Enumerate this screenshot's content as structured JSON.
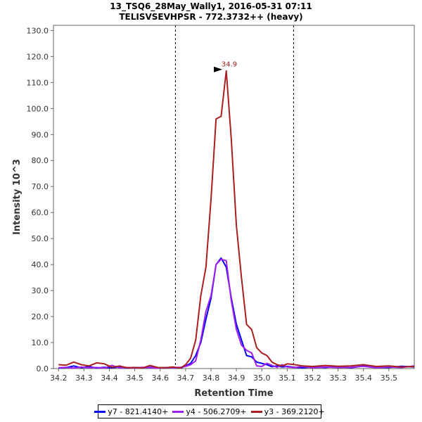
{
  "header": {
    "title_line1": "13_TSQ6_28May_Wally1, 2016-05-31 07:11",
    "title_line2": "TELISVSEVHPSR - 772.3732++ (heavy)"
  },
  "chart_data": {
    "type": "line",
    "xlabel": "Retention Time",
    "ylabel": "Intensity 10^3",
    "xlim": [
      34.18,
      35.6
    ],
    "ylim": [
      0,
      132
    ],
    "x_ticks": [
      "34.2",
      "34.3",
      "34.4",
      "34.5",
      "34.6",
      "34.7",
      "34.8",
      "34.9",
      "35.0",
      "35.1",
      "35.2",
      "35.3",
      "35.4",
      "35.5"
    ],
    "y_ticks": [
      "0.0",
      "10.0",
      "20.0",
      "30.0",
      "40.0",
      "50.0",
      "60.0",
      "70.0",
      "80.0",
      "90.0",
      "100.0",
      "110.0",
      "120.0",
      "130.0"
    ],
    "boundaries": [
      34.66,
      35.125
    ],
    "peak_annotation": {
      "label": "34.9",
      "x": 34.85,
      "y": 114.5
    },
    "series": [
      {
        "name": "y7 - 821.4140+",
        "color": "#0000ff",
        "x": [
          34.2,
          34.23,
          34.26,
          34.29,
          34.32,
          34.35,
          34.38,
          34.41,
          34.44,
          34.47,
          34.5,
          34.53,
          34.56,
          34.59,
          34.62,
          34.65,
          34.68,
          34.7,
          34.72,
          34.74,
          34.76,
          34.78,
          34.8,
          34.82,
          34.84,
          34.86,
          34.88,
          34.9,
          34.92,
          34.94,
          34.96,
          34.98,
          35.0,
          35.02,
          35.04,
          35.06,
          35.08,
          35.1,
          35.13,
          35.16,
          35.2,
          35.25,
          35.3,
          35.35,
          35.4,
          35.45,
          35.5,
          35.55,
          35.6
        ],
        "values": [
          0.2,
          0.4,
          1.0,
          0.3,
          0.8,
          0.2,
          0.5,
          0.3,
          0.6,
          0.2,
          0.4,
          0.3,
          0.5,
          0.2,
          0.3,
          0.4,
          0.2,
          1.0,
          2.0,
          5.0,
          10.0,
          19.0,
          27.0,
          40.0,
          42.5,
          39.0,
          27.0,
          17.0,
          11.0,
          5.0,
          4.5,
          2.5,
          2.0,
          1.5,
          0.7,
          1.0,
          0.6,
          0.8,
          0.5,
          0.3,
          0.6,
          0.4,
          0.8,
          0.3,
          1.0,
          0.5,
          0.4,
          0.9,
          0.6
        ]
      },
      {
        "name": "y4 - 506.2709+",
        "color": "#a020f0",
        "x": [
          34.2,
          34.23,
          34.26,
          34.29,
          34.32,
          34.35,
          34.38,
          34.41,
          34.44,
          34.47,
          34.5,
          34.53,
          34.56,
          34.59,
          34.62,
          34.65,
          34.68,
          34.7,
          34.72,
          34.74,
          34.76,
          34.78,
          34.8,
          34.82,
          34.84,
          34.86,
          34.88,
          34.9,
          34.92,
          34.94,
          34.96,
          34.98,
          35.0,
          35.02,
          35.04,
          35.06,
          35.08,
          35.1,
          35.13,
          35.16,
          35.2,
          35.25,
          35.3,
          35.35,
          35.4,
          35.45,
          35.5,
          35.55,
          35.6
        ],
        "values": [
          0.3,
          0.5,
          0.2,
          0.6,
          0.3,
          0.4,
          0.2,
          1.2,
          0.3,
          0.4,
          0.2,
          0.5,
          0.3,
          0.2,
          0.4,
          0.3,
          0.5,
          0.8,
          1.5,
          3.0,
          11.0,
          22.0,
          28.0,
          40.0,
          42.0,
          41.5,
          26.0,
          15.0,
          9.0,
          7.0,
          6.0,
          1.0,
          0.8,
          2.0,
          1.2,
          0.5,
          1.5,
          0.6,
          0.4,
          0.8,
          0.3,
          0.6,
          0.4,
          0.5,
          0.9,
          0.3,
          0.6,
          0.4,
          1.0
        ]
      },
      {
        "name": "y3 - 369.2120+",
        "color": "#aa1f1f",
        "x": [
          34.2,
          34.23,
          34.26,
          34.29,
          34.32,
          34.35,
          34.38,
          34.41,
          34.44,
          34.47,
          34.5,
          34.53,
          34.56,
          34.59,
          34.62,
          34.65,
          34.68,
          34.7,
          34.72,
          34.74,
          34.76,
          34.78,
          34.8,
          34.82,
          34.84,
          34.86,
          34.88,
          34.9,
          34.92,
          34.94,
          34.96,
          34.98,
          35.0,
          35.02,
          35.04,
          35.06,
          35.08,
          35.1,
          35.13,
          35.16,
          35.2,
          35.25,
          35.3,
          35.35,
          35.4,
          35.45,
          35.5,
          35.55,
          35.6
        ],
        "values": [
          1.5,
          1.3,
          2.5,
          1.5,
          1.0,
          2.2,
          1.8,
          0.5,
          1.0,
          0.3,
          0.4,
          0.2,
          1.2,
          0.4,
          0.3,
          0.6,
          0.2,
          1.5,
          4.0,
          11.0,
          28.0,
          39.0,
          65.0,
          96.0,
          97.0,
          114.5,
          88.0,
          55.0,
          35.0,
          17.0,
          15.0,
          8.0,
          6.0,
          5.0,
          2.5,
          1.5,
          1.0,
          1.8,
          1.5,
          1.0,
          0.8,
          1.2,
          0.9,
          1.0,
          1.5,
          0.8,
          1.0,
          0.6,
          0.8
        ]
      }
    ]
  }
}
